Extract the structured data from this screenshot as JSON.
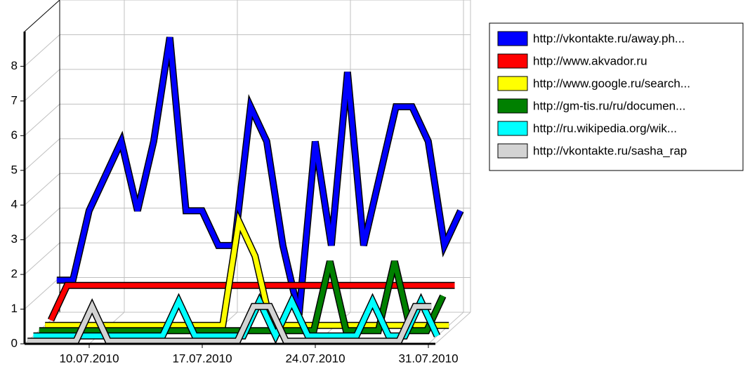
{
  "chart_data": {
    "type": "line3d",
    "categories": [
      null,
      null,
      null,
      null,
      "10.07.2010",
      null,
      null,
      null,
      null,
      null,
      null,
      "17.07.2010",
      null,
      null,
      null,
      null,
      null,
      null,
      "24.07.2010",
      null,
      null,
      null,
      null,
      null,
      null,
      "31.07.2010"
    ],
    "series": [
      {
        "name": "http://vkontakte.ru/away.ph...",
        "color": "#0000ff",
        "values": [
          1,
          1,
          3,
          4,
          5,
          3,
          5,
          8,
          3,
          3,
          2,
          2,
          6,
          5,
          2,
          0,
          5,
          2,
          7,
          2,
          4,
          6,
          6,
          5,
          2,
          3
        ]
      },
      {
        "name": "http://www.akvador.ru",
        "color": "#ff0000",
        "values": [
          0,
          1,
          1,
          1,
          1,
          1,
          1,
          1,
          1,
          1,
          1,
          1,
          1,
          1,
          1,
          1,
          1,
          1,
          1,
          1,
          1,
          1,
          1,
          1,
          1,
          1
        ]
      },
      {
        "name": "http://www.google.ru/search...",
        "color": "#ffff00",
        "values": [
          0,
          0,
          0,
          0,
          0,
          0,
          0,
          0,
          0,
          0,
          0,
          0,
          3,
          2,
          0,
          0,
          0,
          0,
          0,
          0,
          0,
          0,
          0,
          0,
          0,
          0
        ]
      },
      {
        "name": "http://gm-tis.ru/ru/documen...",
        "color": "#008000",
        "values": [
          0,
          0,
          0,
          0,
          0,
          0,
          0,
          0,
          0,
          0,
          0,
          0,
          0,
          0,
          0,
          0,
          0,
          0,
          2,
          0,
          0,
          0,
          2,
          0,
          0,
          1
        ]
      },
      {
        "name": "http://ru.wikipedia.org/wik...",
        "color": "#00ffff",
        "values": [
          0,
          0,
          0,
          0,
          0,
          0,
          0,
          0,
          0,
          1,
          0,
          0,
          0,
          0,
          1,
          0,
          1,
          0,
          0,
          0,
          0,
          1,
          0,
          0,
          1,
          0
        ]
      },
      {
        "name": "http://vkontakte.ru/sasha_rap",
        "color": "#d3d3d3",
        "values": [
          0,
          0,
          0,
          0,
          1,
          0,
          0,
          0,
          0,
          0,
          0,
          0,
          0,
          0,
          1,
          1,
          0,
          0,
          0,
          0,
          0,
          0,
          0,
          0,
          1,
          1
        ]
      }
    ],
    "ylim": [
      0,
      9
    ],
    "yticks": [
      0,
      1,
      2,
      3,
      4,
      5,
      6,
      7,
      8
    ],
    "grid": true,
    "legend": "right"
  }
}
